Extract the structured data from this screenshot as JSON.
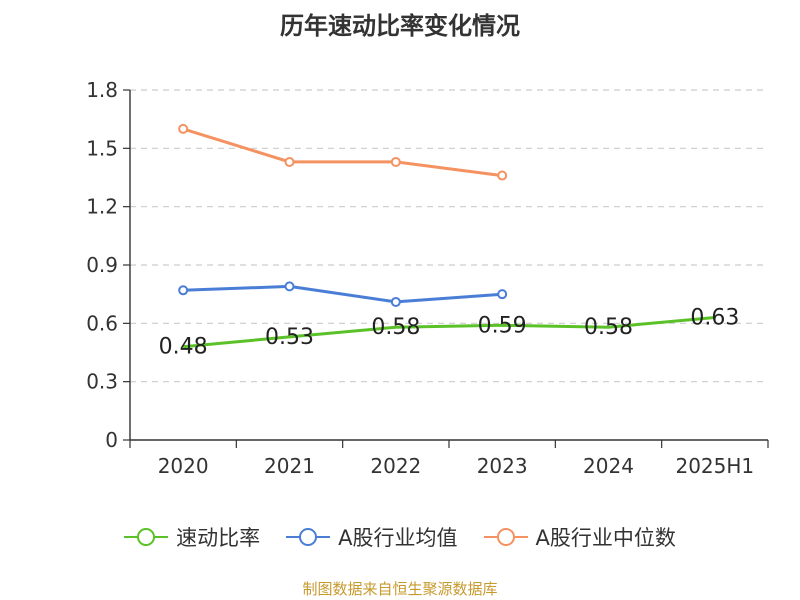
{
  "chart_data": {
    "type": "line",
    "title": "历年速动比率变化情况",
    "categories": [
      "2020",
      "2021",
      "2022",
      "2023",
      "2024",
      "2025H1"
    ],
    "yticks": [
      "0",
      "0.3",
      "0.6",
      "0.9",
      "1.2",
      "1.5",
      "1.8"
    ],
    "ylim": [
      0,
      1.8
    ],
    "grid": true,
    "legend_position": "bottom",
    "series": [
      {
        "name": "速动比率",
        "color": "#5ac228",
        "values": [
          0.48,
          0.53,
          0.58,
          0.59,
          0.58,
          0.63
        ],
        "labels": [
          "0.48",
          "0.53",
          "0.58",
          "0.59",
          "0.58",
          "0.63"
        ]
      },
      {
        "name": "A股行业均值",
        "color": "#4a7ed6",
        "values": [
          0.77,
          0.79,
          0.71,
          0.75,
          null,
          null
        ]
      },
      {
        "name": "A股行业中位数",
        "color": "#f49262",
        "values": [
          1.6,
          1.43,
          1.43,
          1.36,
          null,
          null
        ]
      }
    ]
  },
  "source": "制图数据来自恒生聚源数据库"
}
